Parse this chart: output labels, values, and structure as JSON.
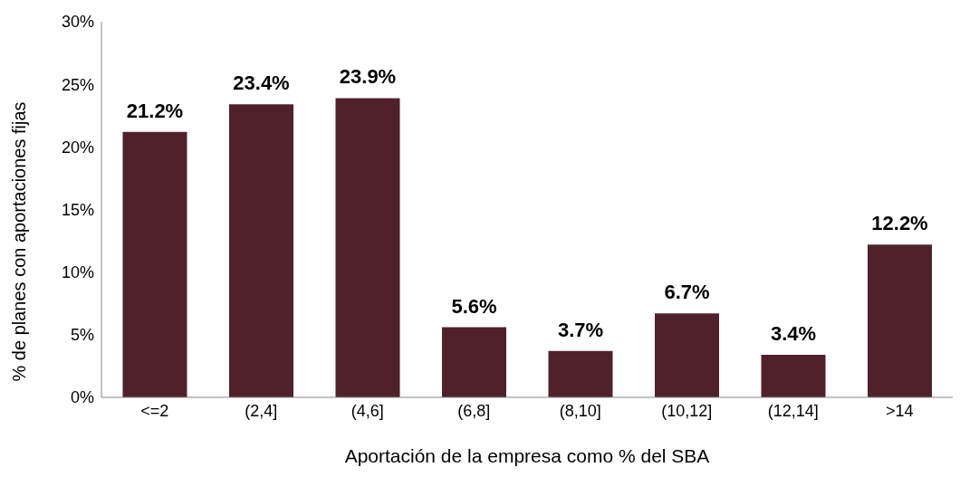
{
  "chart_data": {
    "type": "bar",
    "xlabel": "Aportación de la empresa como % del SBA",
    "ylabel": "% de planes con aportaciones fijas",
    "categories": [
      "<=2",
      "(2,4]",
      "(4,6]",
      "(6,8]",
      "(8,10]",
      "(10,12]",
      "(12,14]",
      ">14"
    ],
    "values": [
      21.2,
      23.4,
      23.9,
      5.6,
      3.7,
      6.7,
      3.4,
      12.2
    ],
    "value_labels": [
      "21.2%",
      "23.4%",
      "23.9%",
      "5.6%",
      "3.7%",
      "6.7%",
      "3.4%",
      "12.2%"
    ],
    "color": "#4f222b",
    "ylim": [
      0,
      30
    ],
    "yticks": [
      {
        "value": 0,
        "label": "0%"
      },
      {
        "value": 5,
        "label": "5%"
      },
      {
        "value": 10,
        "label": "10%"
      },
      {
        "value": 15,
        "label": "15%"
      },
      {
        "value": 20,
        "label": "20%"
      },
      {
        "value": 25,
        "label": "25%"
      },
      {
        "value": 30,
        "label": "30%"
      }
    ],
    "grid": false,
    "legend": false
  }
}
